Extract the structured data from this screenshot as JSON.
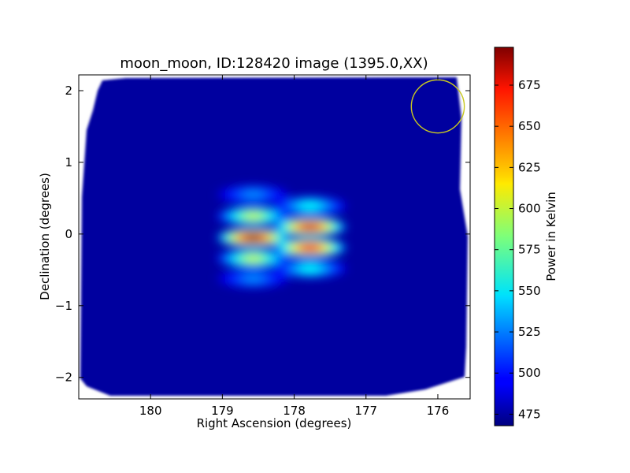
{
  "chart_data": {
    "type": "heatmap",
    "title": "moon_moon, ID:128420 image (1395.0,XX)",
    "xlabel": "Right Ascension (degrees)",
    "ylabel": "Declination (degrees)",
    "xlim": [
      181.0,
      175.55
    ],
    "ylim": [
      -2.3,
      2.22
    ],
    "x_ticks": [
      180,
      179,
      178,
      177,
      176
    ],
    "x_tick_labels": [
      "180",
      "179",
      "178",
      "177",
      "176"
    ],
    "y_ticks": [
      2,
      1,
      0,
      -1,
      -2
    ],
    "y_tick_labels": [
      "2",
      "1",
      "0",
      "−1",
      "−2"
    ],
    "colorbar": {
      "label": "Power in Kelvin",
      "range": [
        468,
        698
      ],
      "ticks": [
        675,
        650,
        625,
        600,
        575,
        550,
        525,
        500,
        475
      ],
      "tick_labels": [
        "675",
        "650",
        "625",
        "600",
        "575",
        "550",
        "525",
        "500",
        "475"
      ],
      "colormap": "jet"
    },
    "background_level": 475,
    "sources": [
      {
        "ra": 178.57,
        "dec": -0.05,
        "peak": 692
      },
      {
        "ra": 178.57,
        "dec": 0.25,
        "peak": 598
      },
      {
        "ra": 178.57,
        "dec": -0.34,
        "peak": 598
      },
      {
        "ra": 178.57,
        "dec": 0.55,
        "peak": 528
      },
      {
        "ra": 178.57,
        "dec": -0.62,
        "peak": 528
      },
      {
        "ra": 177.78,
        "dec": 0.1,
        "peak": 678
      },
      {
        "ra": 177.78,
        "dec": -0.19,
        "peak": 672
      },
      {
        "ra": 177.78,
        "dec": 0.39,
        "peak": 555
      },
      {
        "ra": 177.78,
        "dec": -0.48,
        "peak": 555
      }
    ],
    "annotations": [
      {
        "type": "circle",
        "ra": 176.0,
        "dec": 1.78,
        "radius_dec": 0.37,
        "color": "#c8c820"
      }
    ]
  }
}
